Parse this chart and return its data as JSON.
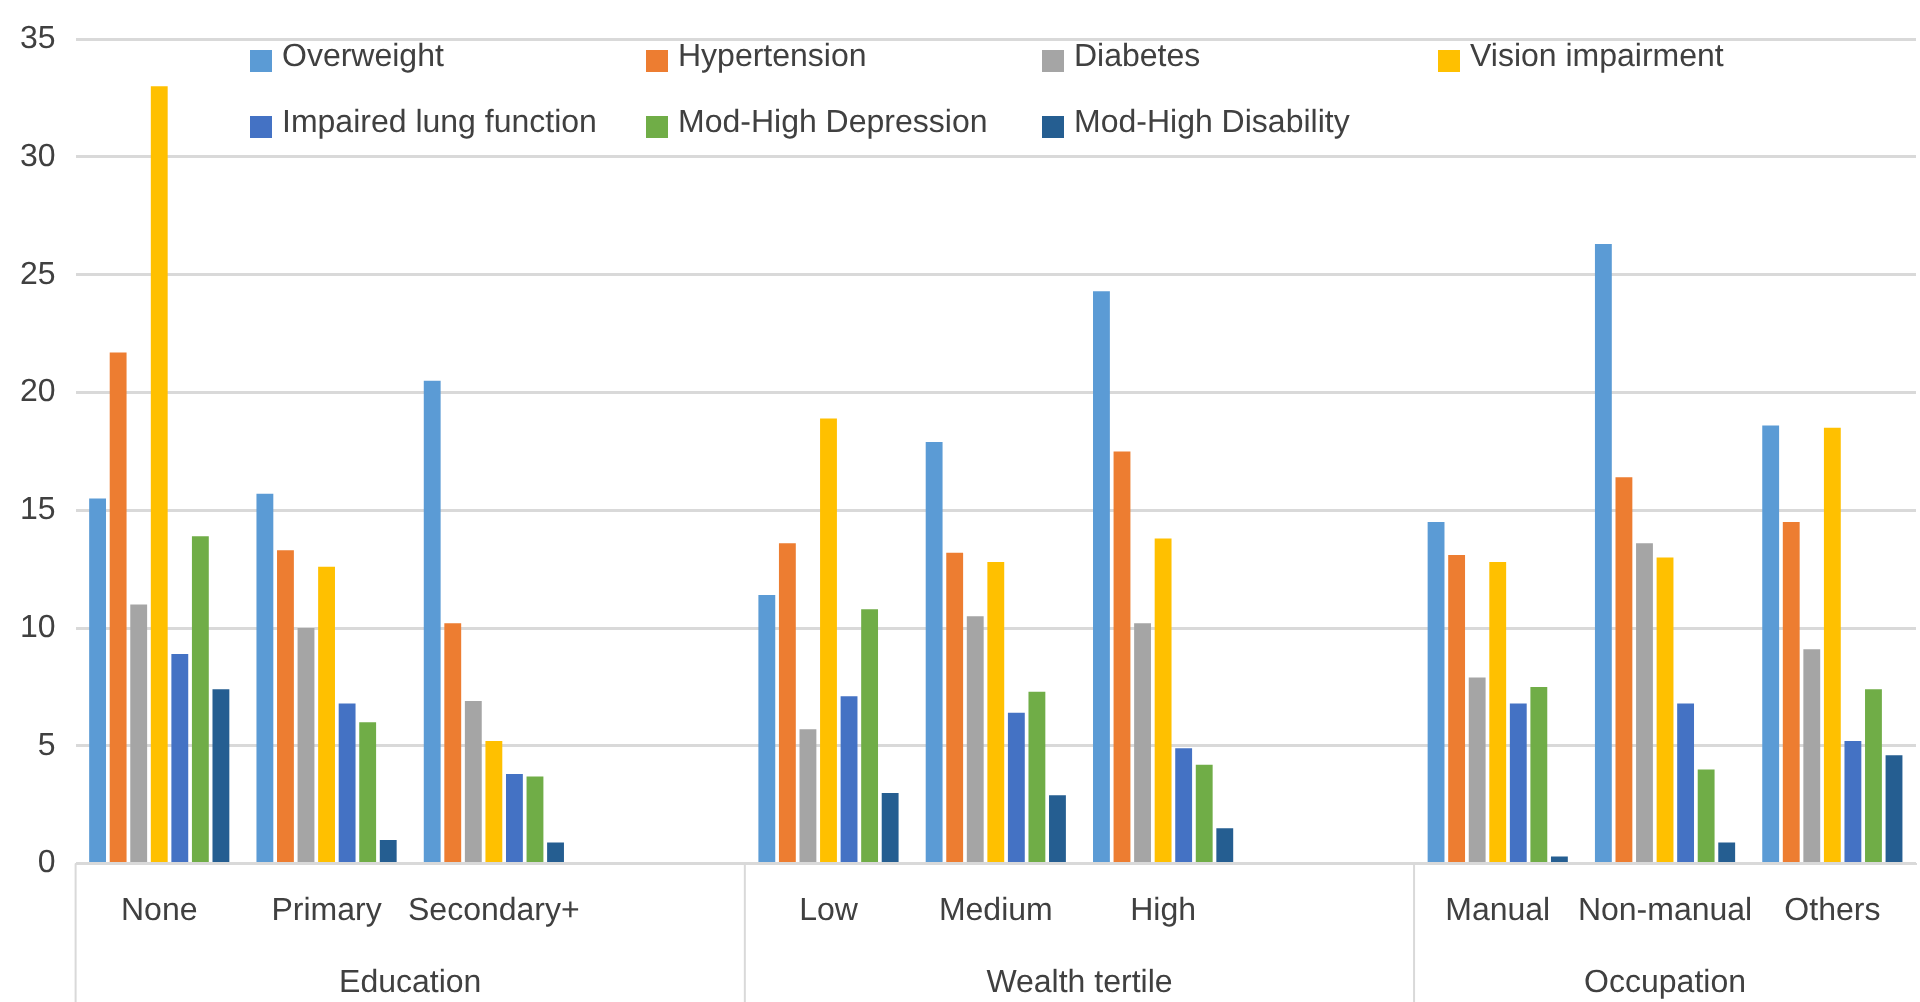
{
  "chart_data": {
    "type": "bar",
    "categories": [
      "None",
      "Primary",
      "Secondary+",
      null,
      "Low",
      "Medium",
      "High",
      null,
      "Manual",
      "Non-manual",
      "Others"
    ],
    "series": [
      {
        "name": "Overweight",
        "color": "#5b9bd5",
        "values": [
          15.5,
          15.7,
          20.5,
          null,
          11.4,
          17.9,
          24.3,
          null,
          14.5,
          26.3,
          18.6
        ]
      },
      {
        "name": "Hypertension",
        "color": "#ed7d31",
        "values": [
          21.7,
          13.3,
          10.2,
          null,
          13.6,
          13.2,
          17.5,
          null,
          13.1,
          16.4,
          14.5
        ]
      },
      {
        "name": "Diabetes",
        "color": "#a5a5a5",
        "values": [
          11,
          10,
          6.9,
          null,
          5.7,
          10.5,
          10.2,
          null,
          7.9,
          13.6,
          9.1
        ]
      },
      {
        "name": "Vision impairment",
        "color": "#ffc000",
        "values": [
          33,
          12.6,
          5.2,
          null,
          18.9,
          12.8,
          13.8,
          null,
          12.8,
          13,
          18.5
        ]
      },
      {
        "name": "Impaired lung function",
        "color": "#4472c4",
        "values": [
          8.9,
          6.8,
          3.8,
          null,
          7.1,
          6.4,
          4.9,
          null,
          6.8,
          6.8,
          5.2
        ]
      },
      {
        "name": "Mod-High Depression",
        "color": "#70ad47",
        "values": [
          13.9,
          6,
          3.7,
          null,
          10.8,
          7.3,
          4.2,
          null,
          7.5,
          4,
          7.4
        ]
      },
      {
        "name": "Mod-High Disability",
        "color": "#255e91",
        "values": [
          7.4,
          1,
          0.9,
          null,
          3,
          2.9,
          1.5,
          null,
          0.3,
          0.9,
          4.6
        ]
      }
    ],
    "ylim": [
      0,
      35
    ],
    "yticks": [
      0,
      5,
      10,
      15,
      20,
      25,
      30,
      35
    ],
    "grid": "y",
    "legend": "top",
    "annotations": [
      "Education",
      "Wealth tertile",
      "Occupation"
    ]
  }
}
